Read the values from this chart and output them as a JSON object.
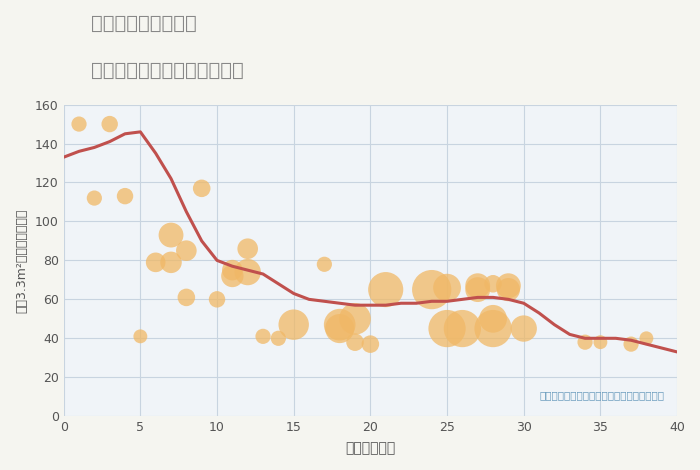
{
  "title_line1": "埼玉県三郷市上彦名",
  "title_line2": "築年数別中古マンション価格",
  "xlabel": "築年数（年）",
  "ylabel": "坪（3.3m²）単価（万円）",
  "annotation": "円の大きさは、取引のあった物件面積を示す",
  "background_color": "#f5f5f0",
  "plot_background": "#f0f4f8",
  "grid_color": "#c8d4e0",
  "line_color": "#c0504d",
  "scatter_color": "#f0b866",
  "scatter_alpha": 0.75,
  "title_color": "#888888",
  "annotation_color": "#6699bb",
  "xlim": [
    0,
    40
  ],
  "ylim": [
    0,
    160
  ],
  "xticks": [
    0,
    5,
    10,
    15,
    20,
    25,
    30,
    35,
    40
  ],
  "yticks": [
    0,
    20,
    40,
    60,
    80,
    100,
    120,
    140,
    160
  ],
  "line_x": [
    0,
    1,
    2,
    3,
    4,
    5,
    6,
    7,
    8,
    9,
    10,
    11,
    12,
    13,
    14,
    15,
    16,
    17,
    18,
    19,
    20,
    21,
    22,
    23,
    24,
    25,
    26,
    27,
    28,
    29,
    30,
    31,
    32,
    33,
    34,
    35,
    36,
    37,
    38,
    39,
    40
  ],
  "line_y": [
    133,
    136,
    138,
    141,
    145,
    146,
    135,
    122,
    105,
    90,
    80,
    77,
    75,
    73,
    68,
    63,
    60,
    59,
    58,
    57,
    57,
    57,
    58,
    58,
    59,
    59,
    60,
    61,
    61,
    60,
    58,
    53,
    47,
    42,
    40,
    40,
    40,
    39,
    37,
    35,
    33
  ],
  "scatter_x": [
    1,
    2,
    3,
    4,
    5,
    6,
    7,
    7,
    8,
    8,
    9,
    10,
    11,
    11,
    12,
    12,
    13,
    14,
    15,
    17,
    18,
    18,
    19,
    19,
    20,
    21,
    24,
    25,
    25,
    26,
    27,
    27,
    28,
    28,
    28,
    29,
    29,
    30,
    34,
    35,
    37,
    38
  ],
  "scatter_y": [
    150,
    112,
    150,
    113,
    41,
    79,
    93,
    79,
    85,
    61,
    117,
    60,
    72,
    75,
    86,
    74,
    41,
    40,
    47,
    78,
    47,
    45,
    50,
    38,
    37,
    65,
    65,
    45,
    66,
    45,
    65,
    67,
    50,
    68,
    45,
    65,
    67,
    45,
    38,
    38,
    37,
    40
  ],
  "scatter_size": [
    30,
    30,
    35,
    35,
    25,
    50,
    80,
    60,
    55,
    40,
    40,
    35,
    65,
    55,
    55,
    90,
    30,
    30,
    120,
    30,
    130,
    110,
    130,
    40,
    40,
    160,
    200,
    180,
    100,
    180,
    80,
    80,
    100,
    40,
    180,
    70,
    80,
    90,
    30,
    25,
    30,
    25
  ]
}
